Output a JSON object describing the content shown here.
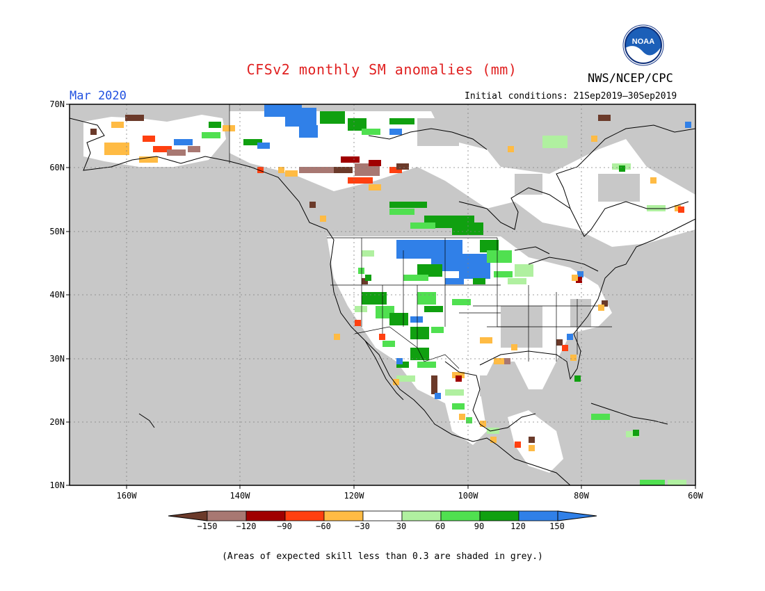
{
  "header": {
    "title": "CFSv2 monthly SM anomalies (mm)",
    "org": "NWS/NCEP/CPC",
    "month": "Mar 2020",
    "initial_conditions": "Initial conditions: 21Sep2019–30Sep2019",
    "logo_text": "NOAA"
  },
  "axes": {
    "lat_labels": [
      "70N",
      "60N",
      "50N",
      "40N",
      "30N",
      "20N",
      "10N"
    ],
    "lon_labels": [
      "160W",
      "140W",
      "120W",
      "100W",
      "80W",
      "60W"
    ]
  },
  "colorbar": {
    "labels": [
      "−150",
      "−120",
      "−90",
      "−60",
      "−30",
      "30",
      "60",
      "90",
      "120",
      "150"
    ],
    "colors": [
      "#6b3a2a",
      "#a87872",
      "#a00000",
      "#ff4010",
      "#ffbb44",
      "#ffffff",
      "#b0f0a0",
      "#50e050",
      "#10a010",
      "#3080e8",
      "#3080e8"
    ]
  },
  "footnote": "(Areas of expected skill less than 0.3 are shaded in grey.)",
  "colors": {
    "grey": "#c8c8c8",
    "title": "#e02020",
    "month": "#2050e0"
  }
}
